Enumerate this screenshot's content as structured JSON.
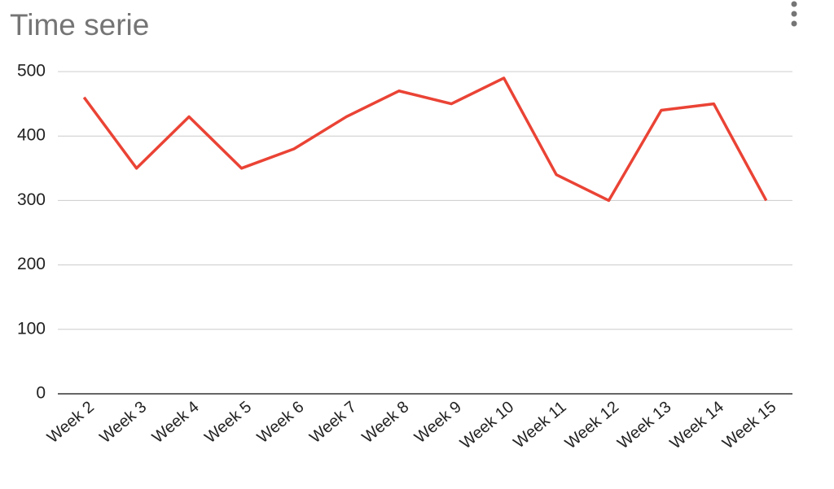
{
  "chart_data": {
    "type": "line",
    "title": "Time serie",
    "categories": [
      "Week 2",
      "Week 3",
      "Week 4",
      "Week 5",
      "Week 6",
      "Week 7",
      "Week 8",
      "Week 9",
      "Week 10",
      "Week 11",
      "Week 12",
      "Week 13",
      "Week 14",
      "Week 15"
    ],
    "values": [
      460,
      350,
      430,
      350,
      380,
      430,
      470,
      450,
      490,
      340,
      300,
      440,
      450,
      300
    ],
    "color": "#ea4335",
    "ylim": [
      0,
      500
    ],
    "yticks": [
      0,
      100,
      200,
      300,
      400,
      500
    ],
    "grid": true
  }
}
